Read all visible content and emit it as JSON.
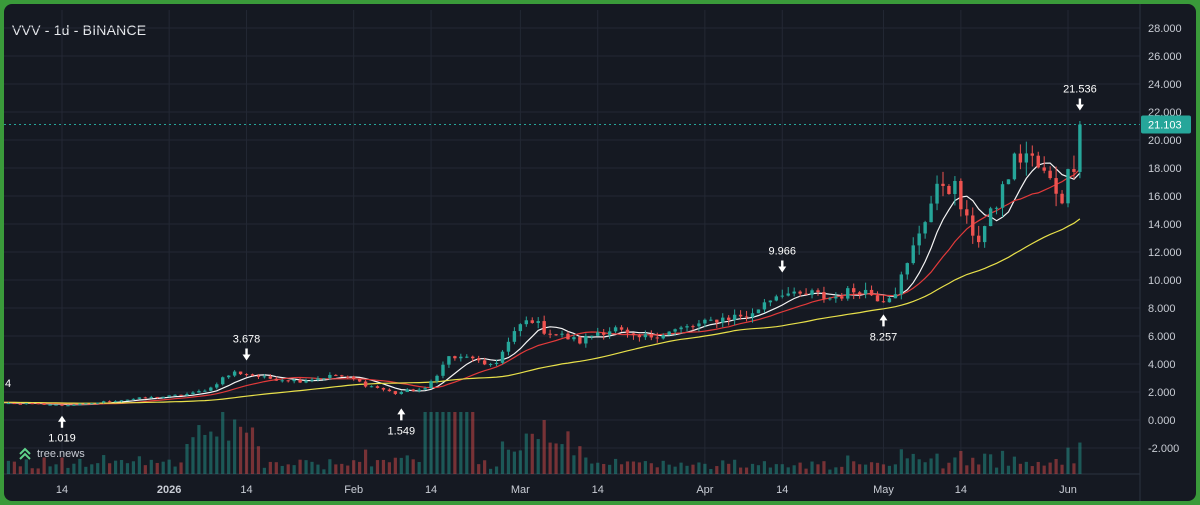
{
  "header": {
    "title": "VVV - 1d - BINANCE"
  },
  "brand": {
    "label": "tree.news",
    "icon": "tree-news-logo-icon"
  },
  "colors": {
    "background": "#151922",
    "grid": "#232834",
    "up": "#26a69a",
    "down": "#ef5350",
    "ma_fast": "#f5f5f5",
    "ma_mid": "#e23a3a",
    "ma_slow": "#e8e04a",
    "price_line": "#26a69a",
    "axis_text": "#c8ccd4"
  },
  "chart_data": {
    "type": "candlestick",
    "y_axis": {
      "ticks": [
        "-2.000",
        "0.000",
        "2.000",
        "4.000",
        "6.000",
        "8.000",
        "10.000",
        "12.000",
        "14.000",
        "16.000",
        "18.000",
        "20.000",
        "22.000",
        "24.000",
        "26.000",
        "28.000"
      ],
      "tick_values": [
        -2,
        0,
        2,
        4,
        6,
        8,
        10,
        12,
        14,
        16,
        18,
        20,
        22,
        24,
        26,
        28
      ]
    },
    "x_axis": {
      "ticks": [
        {
          "label": "14",
          "date": "2025-12-14"
        },
        {
          "label": "2026",
          "date": "2026-01-01"
        },
        {
          "label": "14",
          "date": "2026-01-14"
        },
        {
          "label": "Feb",
          "date": "2026-02-01"
        },
        {
          "label": "14",
          "date": "2026-02-14"
        },
        {
          "label": "Mar",
          "date": "2026-03-01"
        },
        {
          "label": "14",
          "date": "2026-03-14"
        },
        {
          "label": "Apr",
          "date": "2026-04-01"
        },
        {
          "label": "14",
          "date": "2026-04-14"
        },
        {
          "label": "May",
          "date": "2026-05-01"
        },
        {
          "label": "14",
          "date": "2026-05-14"
        },
        {
          "label": "Jun",
          "date": "2026-06-01"
        }
      ]
    },
    "last_price": {
      "label": "21.103",
      "value": 21.103
    },
    "annotations": [
      {
        "label": "1.019",
        "date": "2025-12-14",
        "value": 1.019,
        "position": "below"
      },
      {
        "label": "3.678",
        "date": "2026-01-14",
        "value": 3.678,
        "position": "above"
      },
      {
        "label": "1.549",
        "date": "2026-02-09",
        "value": 1.549,
        "position": "below"
      },
      {
        "label": "9.966",
        "date": "2026-04-14",
        "value": 9.966,
        "position": "above"
      },
      {
        "label": "8.257",
        "date": "2026-05-01",
        "value": 8.257,
        "position": "below"
      },
      {
        "label": "21.536",
        "date": "2026-06-03",
        "value": 21.536,
        "position": "above"
      }
    ],
    "left_edge_label": "4",
    "close_series": [
      [
        "2025-11-21",
        1.3
      ],
      [
        "2025-11-28",
        1.25
      ],
      [
        "2025-12-05",
        1.2
      ],
      [
        "2025-12-10",
        1.15
      ],
      [
        "2025-12-14",
        1.05
      ],
      [
        "2025-12-18",
        1.15
      ],
      [
        "2025-12-22",
        1.35
      ],
      [
        "2025-12-27",
        1.55
      ],
      [
        "2026-01-01",
        1.7
      ],
      [
        "2026-01-05",
        1.9
      ],
      [
        "2026-01-08",
        2.3
      ],
      [
        "2026-01-10",
        3.0
      ],
      [
        "2026-01-12",
        3.4
      ],
      [
        "2026-01-14",
        3.3
      ],
      [
        "2026-01-17",
        3.0
      ],
      [
        "2026-01-20",
        2.9
      ],
      [
        "2026-01-23",
        2.8
      ],
      [
        "2026-01-26",
        3.0
      ],
      [
        "2026-01-29",
        3.2
      ],
      [
        "2026-02-01",
        2.9
      ],
      [
        "2026-02-03",
        2.5
      ],
      [
        "2026-02-05",
        2.3
      ],
      [
        "2026-02-08",
        1.9
      ],
      [
        "2026-02-10",
        2.1
      ],
      [
        "2026-02-13",
        2.2
      ],
      [
        "2026-02-15",
        3.3
      ],
      [
        "2026-02-17",
        4.5
      ],
      [
        "2026-02-19",
        4.4
      ],
      [
        "2026-02-21",
        4.5
      ],
      [
        "2026-02-23",
        3.8
      ],
      [
        "2026-02-25",
        4.2
      ],
      [
        "2026-02-27",
        5.5
      ],
      [
        "2026-03-01",
        6.8
      ],
      [
        "2026-03-03",
        7.2
      ],
      [
        "2026-03-05",
        6.4
      ],
      [
        "2026-03-08",
        6.0
      ],
      [
        "2026-03-11",
        5.6
      ],
      [
        "2026-03-14",
        6.3
      ],
      [
        "2026-03-17",
        6.5
      ],
      [
        "2026-03-20",
        5.8
      ],
      [
        "2026-03-23",
        6.0
      ],
      [
        "2026-03-26",
        6.3
      ],
      [
        "2026-03-29",
        6.6
      ],
      [
        "2026-04-01",
        6.9
      ],
      [
        "2026-04-03",
        7.2
      ],
      [
        "2026-04-06",
        7.4
      ],
      [
        "2026-04-09",
        7.5
      ],
      [
        "2026-04-11",
        8.5
      ],
      [
        "2026-04-14",
        9.2
      ],
      [
        "2026-04-16",
        8.8
      ],
      [
        "2026-04-19",
        9.0
      ],
      [
        "2026-04-22",
        8.7
      ],
      [
        "2026-04-25",
        9.1
      ],
      [
        "2026-04-27",
        9.4
      ],
      [
        "2026-04-30",
        8.8
      ],
      [
        "2026-05-01",
        8.7
      ],
      [
        "2026-05-03",
        9.3
      ],
      [
        "2026-05-05",
        11.0
      ],
      [
        "2026-05-07",
        13.5
      ],
      [
        "2026-05-09",
        15.5
      ],
      [
        "2026-05-11",
        17.0
      ],
      [
        "2026-05-13",
        16.5
      ],
      [
        "2026-05-15",
        14.0
      ],
      [
        "2026-05-17",
        13.0
      ],
      [
        "2026-05-19",
        14.5
      ],
      [
        "2026-05-21",
        16.5
      ],
      [
        "2026-05-23",
        18.5
      ],
      [
        "2026-05-25",
        19.0
      ],
      [
        "2026-05-27",
        18.0
      ],
      [
        "2026-05-29",
        17.0
      ],
      [
        "2026-05-31",
        16.0
      ],
      [
        "2026-06-01",
        17.5
      ],
      [
        "2026-06-02",
        18.5
      ],
      [
        "2026-06-03",
        21.103
      ]
    ],
    "moving_averages": [
      {
        "color_key": "ma_fast",
        "period_days": 7
      },
      {
        "color_key": "ma_mid",
        "period_days": 14
      },
      {
        "color_key": "ma_slow",
        "period_days": 40
      }
    ],
    "volume": {
      "present": true
    }
  }
}
